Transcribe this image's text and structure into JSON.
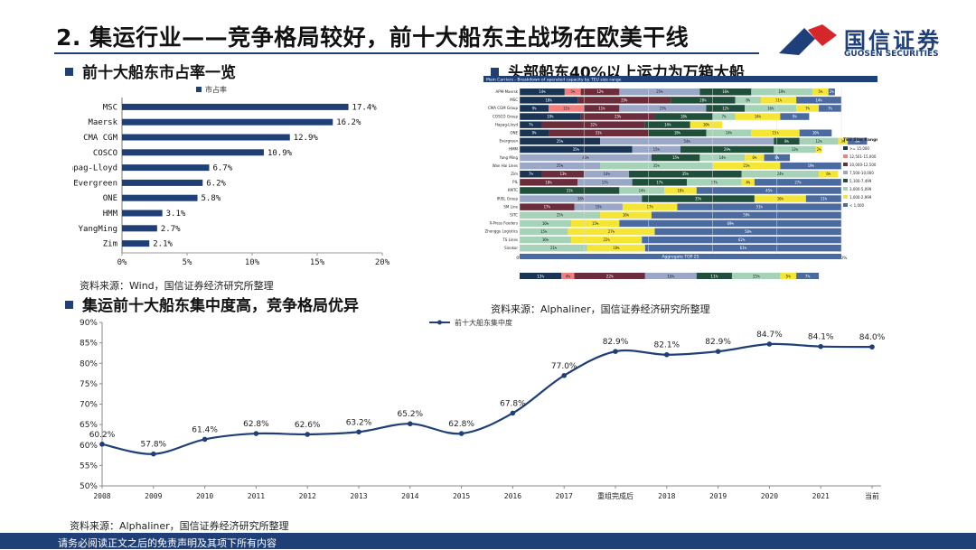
{
  "header": {
    "title": "2. 集运行业——竞争格局较好，前十大船东主战场在欧美干线",
    "logo_name": "国信证券",
    "logo_en": "GUOSEN SECURITIES",
    "logo_colors": [
      "#d7262a",
      "#1e3f7a"
    ]
  },
  "left_section": {
    "heading": "前十大船东市占率一览",
    "source": "资料来源：Wind，国信证券经济研究所整理"
  },
  "right_section": {
    "heading": "头部船东40%以上运力为万箱大船",
    "source": "资料来源：Alphaliner，国信证券经济研究所整理"
  },
  "bottom_section": {
    "heading": "集运前十大船东集中度高，竞争格局优异",
    "source": "资料来源：Alphaliner，国信证券经济研究所整理"
  },
  "footer": {
    "text": "请务必阅读正文之后的免责声明及其项下所有内容"
  },
  "colors": {
    "accent": "#1f3f77",
    "bar": "#1f3f77",
    "line": "#1f3f77"
  },
  "chart_data": [
    {
      "id": "market_share",
      "type": "bar",
      "orientation": "horizontal",
      "legend": "市占率",
      "categories": [
        "MSC",
        "Maersk",
        "CMA CGM",
        "COSCO",
        "Hapag-Lloyd",
        "Evergreen",
        "ONE",
        "HMM",
        "YangMing",
        "Zim"
      ],
      "values": [
        17.4,
        16.2,
        12.9,
        10.9,
        6.7,
        6.2,
        5.8,
        3.1,
        2.7,
        2.1
      ],
      "value_labels": [
        "17.4%",
        "16.2%",
        "12.9%",
        "10.9%",
        "6.7%",
        "6.2%",
        "5.8%",
        "3.1%",
        "2.7%",
        "2.1%"
      ],
      "xlim": [
        0,
        20
      ],
      "xticks": [
        0,
        5,
        10,
        15,
        20
      ],
      "xtick_labels": [
        "0%",
        "5%",
        "10%",
        "15%",
        "20%"
      ]
    },
    {
      "id": "fleet_size_mix",
      "type": "bar",
      "orientation": "horizontal",
      "stacked": true,
      "title": "Main Carriers - Breakdown of operated capacity by TEU size range",
      "categories": [
        "APM-Maersk",
        "MSC",
        "CMA CGM Group",
        "COSCO Group",
        "Hapag-Lloyd",
        "ONE",
        "Evergreen",
        "HMM",
        "Yang Ming",
        "Wan Hai Lines",
        "Zim",
        "PIL",
        "KMTC",
        "IRISL Group",
        "SM Line",
        "SITC",
        "X-Press Feeders",
        "Zhonggu Logistics",
        "TS Lines",
        "Sinokor"
      ],
      "segments": [
        {
          "name": ">= 15,000",
          "color": "#1a3553"
        },
        {
          "name": "12,501-15,000",
          "color": "#f08080"
        },
        {
          "name": "10,000-12,500",
          "color": "#6b2d3b"
        },
        {
          "name": "7,500-10,000",
          "color": "#9aa7c7"
        },
        {
          "name": "5,100-7,499",
          "color": "#20503c"
        },
        {
          "name": "3,000-5,099",
          "color": "#a6d2b8"
        },
        {
          "name": "1,000-2,999",
          "color": "#f5e635"
        },
        {
          "name": "< 1,000",
          "color": "#4a6aa0"
        }
      ],
      "values": [
        [
          14,
          5,
          12,
          25,
          16,
          19,
          5,
          2
        ],
        [
          18,
          0,
          29,
          0,
          20,
          8,
          11,
          14
        ],
        [
          9,
          11,
          11,
          27,
          12,
          16,
          7,
          7
        ],
        [
          19,
          0,
          23,
          0,
          18,
          7,
          14,
          9
        ],
        [
          7,
          0,
          32,
          0,
          14,
          0,
          10,
          0
        ],
        [
          9,
          0,
          31,
          0,
          18,
          14,
          15,
          10
        ],
        [
          25,
          0,
          0,
          54,
          8,
          12,
          3,
          6
        ],
        [
          35,
          0,
          0,
          15,
          29,
          13,
          2,
          0
        ],
        [
          0,
          0,
          0,
          41,
          15,
          14,
          6,
          8
        ],
        [
          0,
          0,
          0,
          25,
          0,
          35,
          21,
          19
        ],
        [
          7,
          0,
          13,
          14,
          35,
          24,
          6,
          0
        ],
        [
          0,
          0,
          18,
          17,
          17,
          17,
          4,
          27
        ],
        [
          0,
          0,
          0,
          0,
          31,
          14,
          10,
          45
        ],
        [
          0,
          0,
          0,
          38,
          35,
          0,
          16,
          11
        ],
        [
          0,
          0,
          17,
          15,
          0,
          0,
          17,
          51
        ],
        [
          0,
          0,
          0,
          0,
          0,
          25,
          16,
          59
        ],
        [
          0,
          0,
          0,
          0,
          0,
          16,
          15,
          69
        ],
        [
          0,
          0,
          0,
          0,
          0,
          15,
          27,
          58
        ],
        [
          0,
          0,
          0,
          0,
          0,
          16,
          22,
          62
        ],
        [
          0,
          0,
          0,
          0,
          0,
          21,
          18,
          61
        ]
      ],
      "xlim": [
        0,
        100
      ],
      "xtick_labels": [
        "0%",
        "20%",
        "40%",
        "60%",
        "80%",
        "100%"
      ],
      "legend_title": "TEU Size Range",
      "aggregate": {
        "label": "Aggregate TOP 25",
        "values": [
          13,
          4,
          22,
          16,
          11,
          15,
          5,
          7
        ],
        "value_labels": [
          "13%",
          "4%",
          "22%",
          "16%",
          "11%",
          "15%",
          "5%",
          "7%"
        ]
      }
    },
    {
      "id": "top10_concentration",
      "type": "line",
      "series_name": "前十大船东集中度",
      "categories": [
        "2008",
        "2009",
        "2010",
        "2011",
        "2012",
        "2013",
        "2014",
        "2015",
        "2016",
        "2017",
        "重组完成后",
        "2018",
        "2019",
        "2020",
        "2021",
        "当前"
      ],
      "values": [
        60.2,
        57.8,
        61.4,
        62.8,
        62.6,
        63.2,
        65.2,
        62.8,
        67.8,
        77.0,
        82.9,
        82.1,
        82.9,
        84.7,
        84.1,
        84.0
      ],
      "value_labels": [
        "60.2%",
        "57.8%",
        "61.4%",
        "62.8%",
        "62.6%",
        "63.2%",
        "65.2%",
        "62.8%",
        "67.8%",
        "77.0%",
        "82.9%",
        "82.1%",
        "82.9%",
        "84.7%",
        "84.1%",
        "84.0%"
      ],
      "ylim": [
        50,
        90
      ],
      "yticks": [
        50,
        55,
        60,
        65,
        70,
        75,
        80,
        85,
        90
      ],
      "ytick_labels": [
        "50%",
        "55%",
        "60%",
        "65%",
        "70%",
        "75%",
        "80%",
        "85%",
        "90%"
      ]
    }
  ]
}
